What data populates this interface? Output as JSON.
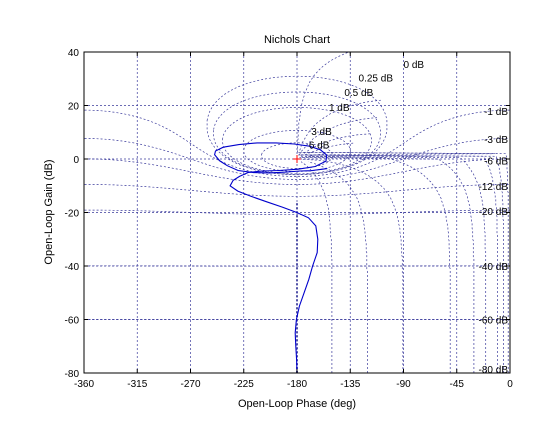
{
  "chart_data": {
    "type": "line",
    "title": "Nichols Chart",
    "xlabel": "Open-Loop Phase (deg)",
    "ylabel": "Open-Loop Gain (dB)",
    "xlim": [
      -360,
      0
    ],
    "ylim": [
      -80,
      40
    ],
    "xticks": [
      -360,
      -315,
      -270,
      -225,
      -180,
      -135,
      -90,
      -45,
      0
    ],
    "yticks": [
      -80,
      -60,
      -40,
      -20,
      0,
      20,
      40
    ],
    "grid": true,
    "critical_point": {
      "x": -180,
      "y": 0,
      "marker": "+"
    },
    "gain_grid_labels": [
      {
        "text": "0 dB",
        "x": -90,
        "y": 35.5
      },
      {
        "text": "0.25 dB",
        "x": -128,
        "y": 30.5
      },
      {
        "text": "0.5 dB",
        "x": -140,
        "y": 25
      },
      {
        "text": "1 dB",
        "x": -153,
        "y": 19.5
      },
      {
        "text": "-1 dB",
        "x": -12,
        "y": 18
      },
      {
        "text": "3 dB",
        "x": -168,
        "y": 10.5
      },
      {
        "text": "6 dB",
        "x": -170,
        "y": 5.5
      },
      {
        "text": "-3 dB",
        "x": -8,
        "y": 7.5
      },
      {
        "text": "-6 dB",
        "x": -6,
        "y": -0.5
      },
      {
        "text": "-12 dB",
        "x": -6,
        "y": -10
      },
      {
        "text": "-20 dB",
        "x": -6,
        "y": -19.5
      },
      {
        "text": "-40 dB",
        "x": -6,
        "y": -40
      },
      {
        "text": "-60 dB",
        "x": -6,
        "y": -60
      },
      {
        "text": "-80 dB",
        "x": -6,
        "y": -78.5
      }
    ],
    "series": [
      {
        "color": "#0000cc",
        "x": [
          -180,
          -180.3,
          -181,
          -181.5,
          -180.5,
          -178,
          -174,
          -170,
          -166.8,
          -162.9,
          -162.4,
          -164.1,
          -170.3,
          -180.2,
          -192.4,
          -205.6,
          -218.7,
          -230,
          -236.5,
          -234,
          -228.6,
          -221.1,
          -208.7,
          -195.3,
          -179.1,
          -164.6,
          -155.5,
          -154.9,
          -160.1,
          -169.4,
          -182.4,
          -197.6,
          -213.8,
          -229.1,
          -242.4,
          -248.9,
          -249.6,
          -245.2,
          -238.9,
          -229.8,
          -216.8,
          -203.4,
          -189.4,
          -177.5,
          -171.2,
          -168.7,
          -167.2,
          -161.7,
          -154.4
        ],
        "y": [
          -80,
          -75,
          -70,
          -65,
          -60,
          -55,
          -50,
          -45,
          -40,
          -35,
          -30,
          -25,
          -22,
          -20,
          -18,
          -16,
          -14,
          -12,
          -10,
          -8,
          -6.5,
          -5,
          -4.5,
          -4.3,
          -3.8,
          -2.8,
          -0.8,
          1.5,
          3.4,
          4.8,
          5.6,
          6,
          6,
          5.4,
          4.4,
          3,
          1.6,
          -0.7,
          -2.5,
          -4.3,
          -5.1,
          -5.2,
          -4.9,
          -4.5,
          -4.4,
          -4.4,
          -4.3,
          -4,
          -3.6
        ]
      }
    ]
  }
}
